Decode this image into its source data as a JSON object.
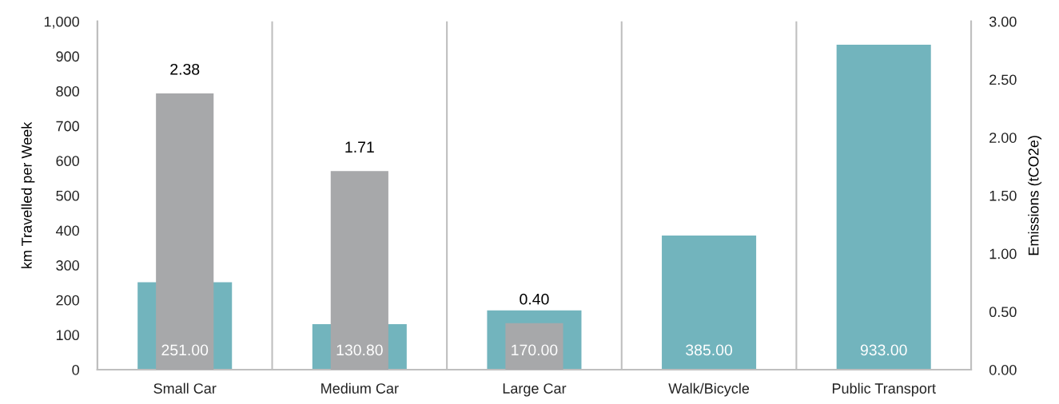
{
  "chart_data": {
    "type": "bar",
    "xlabel": null,
    "ylabel": "km Travelled per Week",
    "y2label": "Emissions (tCO2e)",
    "categories": [
      "Small Car",
      "Medium Car",
      "Large Car",
      "Walk/Bicycle",
      "Public Transport"
    ],
    "series": [
      {
        "color": "#72b4bd",
        "values": [
          251,
          130.8,
          170,
          385,
          933
        ],
        "value_labels": [
          "251.00",
          "130.80",
          "170.00",
          "385.00",
          "933.00"
        ]
      },
      {
        "color": "#a7a8aa",
        "axis": "y2",
        "values": [
          2.38,
          1.71,
          0.4,
          null,
          null
        ],
        "value_labels": [
          "2.38",
          "1.71",
          "0.40",
          null,
          null
        ]
      }
    ],
    "ylim": [
      0,
      1000
    ],
    "yticks": [
      0,
      {
        "value": 100,
        "label": "100"
      },
      {
        "value": 200,
        "label": "200"
      },
      {
        "value": 300,
        "label": "300"
      },
      {
        "value": 400,
        "label": "400"
      },
      {
        "value": 500,
        "label": "500"
      },
      {
        "value": 600,
        "label": "600"
      },
      {
        "value": 700,
        "label": "700"
      },
      {
        "value": 800,
        "label": "800"
      },
      {
        "value": 900,
        "label": "900"
      },
      {
        "value": 1000,
        "label": "1,000"
      }
    ],
    "y2lim": [
      0,
      3
    ],
    "y2ticks": [
      {
        "value": 0,
        "label": "0.00"
      },
      {
        "value": 0.5,
        "label": "0.50"
      },
      {
        "value": 1,
        "label": "1.00"
      },
      {
        "value": 1.5,
        "label": "1.50"
      },
      {
        "value": 2,
        "label": "2.00"
      },
      {
        "value": 2.5,
        "label": "2.50"
      },
      {
        "value": 3,
        "label": "3.00"
      }
    ],
    "grid": "x",
    "legend": false
  }
}
